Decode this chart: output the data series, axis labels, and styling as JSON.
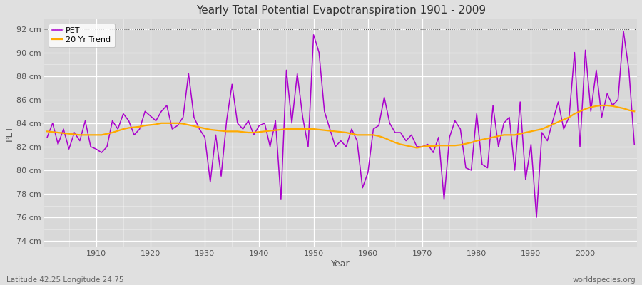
{
  "title": "Yearly Total Potential Evapotranspiration 1901 - 2009",
  "xlabel": "Year",
  "ylabel": "PET",
  "bottom_left_label": "Latitude 42.25 Longitude 24.75",
  "bottom_right_label": "worldspecies.org",
  "pet_color": "#aa00cc",
  "trend_color": "#ffaa00",
  "bg_color": "#e0e0e0",
  "plot_bg_color": "#d8d8d8",
  "ylim": [
    73.5,
    92.8
  ],
  "yticks": [
    74,
    76,
    78,
    80,
    82,
    84,
    86,
    88,
    90,
    92
  ],
  "ytick_labels": [
    "74 cm",
    "76 cm",
    "78 cm",
    "80 cm",
    "82 cm",
    "84 cm",
    "86 cm",
    "88 cm",
    "90 cm",
    "92 cm"
  ],
  "years": [
    1901,
    1902,
    1903,
    1904,
    1905,
    1906,
    1907,
    1908,
    1909,
    1910,
    1911,
    1912,
    1913,
    1914,
    1915,
    1916,
    1917,
    1918,
    1919,
    1920,
    1921,
    1922,
    1923,
    1924,
    1925,
    1926,
    1927,
    1928,
    1929,
    1930,
    1931,
    1932,
    1933,
    1934,
    1935,
    1936,
    1937,
    1938,
    1939,
    1940,
    1941,
    1942,
    1943,
    1944,
    1945,
    1946,
    1947,
    1948,
    1949,
    1950,
    1951,
    1952,
    1953,
    1954,
    1955,
    1956,
    1957,
    1958,
    1959,
    1960,
    1961,
    1962,
    1963,
    1964,
    1965,
    1966,
    1967,
    1968,
    1969,
    1970,
    1971,
    1972,
    1973,
    1974,
    1975,
    1976,
    1977,
    1978,
    1979,
    1980,
    1981,
    1982,
    1983,
    1984,
    1985,
    1986,
    1987,
    1988,
    1989,
    1990,
    1991,
    1992,
    1993,
    1994,
    1995,
    1996,
    1997,
    1998,
    1999,
    2000,
    2001,
    2002,
    2003,
    2004,
    2005,
    2006,
    2007,
    2008,
    2009
  ],
  "pet_values": [
    82.8,
    84.0,
    82.2,
    83.5,
    81.8,
    83.2,
    82.5,
    84.2,
    82.0,
    81.8,
    81.5,
    82.0,
    84.2,
    83.5,
    84.8,
    84.2,
    83.0,
    83.5,
    85.0,
    84.6,
    84.2,
    85.0,
    85.5,
    83.5,
    83.8,
    84.5,
    88.2,
    84.5,
    83.5,
    82.8,
    79.0,
    83.0,
    79.5,
    84.2,
    87.3,
    84.0,
    83.5,
    84.2,
    83.0,
    83.8,
    84.0,
    82.0,
    84.2,
    77.5,
    88.5,
    84.0,
    88.2,
    84.5,
    82.0,
    91.5,
    90.0,
    85.0,
    83.5,
    82.0,
    82.5,
    82.0,
    83.5,
    82.5,
    78.5,
    79.8,
    83.5,
    83.8,
    86.2,
    84.0,
    83.2,
    83.2,
    82.5,
    83.0,
    82.0,
    82.0,
    82.2,
    81.5,
    82.8,
    77.5,
    82.8,
    84.2,
    83.5,
    80.2,
    80.0,
    84.8,
    80.5,
    80.2,
    85.5,
    82.0,
    84.0,
    84.5,
    80.0,
    85.8,
    79.2,
    82.2,
    76.0,
    83.2,
    82.5,
    84.2,
    85.8,
    83.5,
    84.5,
    90.0,
    82.0,
    90.2,
    85.0,
    88.5,
    84.5,
    86.5,
    85.5,
    86.0,
    91.8,
    88.5,
    82.2
  ],
  "trend_values": [
    83.3,
    83.25,
    83.2,
    83.15,
    83.1,
    83.05,
    83.0,
    83.0,
    83.0,
    83.0,
    83.0,
    83.1,
    83.2,
    83.35,
    83.5,
    83.6,
    83.65,
    83.7,
    83.8,
    83.85,
    83.9,
    84.0,
    84.0,
    84.0,
    84.0,
    83.95,
    83.85,
    83.75,
    83.65,
    83.55,
    83.45,
    83.4,
    83.35,
    83.3,
    83.3,
    83.3,
    83.25,
    83.2,
    83.2,
    83.25,
    83.3,
    83.35,
    83.4,
    83.45,
    83.5,
    83.5,
    83.5,
    83.5,
    83.5,
    83.5,
    83.45,
    83.4,
    83.35,
    83.3,
    83.25,
    83.2,
    83.1,
    83.0,
    83.0,
    83.0,
    83.0,
    82.9,
    82.75,
    82.55,
    82.35,
    82.2,
    82.1,
    82.0,
    81.9,
    82.0,
    82.05,
    82.05,
    82.1,
    82.1,
    82.1,
    82.1,
    82.15,
    82.25,
    82.35,
    82.5,
    82.6,
    82.7,
    82.8,
    82.9,
    83.0,
    83.0,
    83.0,
    83.1,
    83.2,
    83.3,
    83.4,
    83.5,
    83.7,
    83.9,
    84.1,
    84.3,
    84.5,
    84.8,
    85.0,
    85.2,
    85.35,
    85.45,
    85.5,
    85.5,
    85.45,
    85.35,
    85.25,
    85.1,
    85.0
  ]
}
